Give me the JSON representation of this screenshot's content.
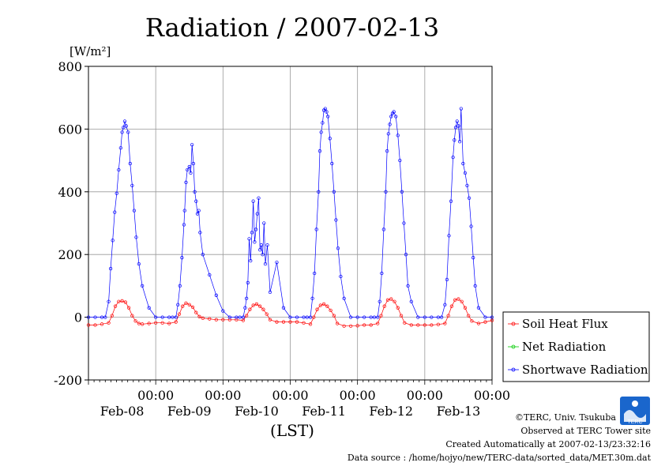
{
  "chart_data": {
    "type": "line",
    "title": "Radiation / 2007-02-13",
    "ylabel": "[W/m²]",
    "xlabel": "(LST)",
    "ylim": [
      -200,
      800
    ],
    "yticks": [
      -200,
      0,
      200,
      400,
      600,
      800
    ],
    "grid": true,
    "legend_position": "right",
    "xlim_days": [
      0,
      6
    ],
    "xticks": [
      {
        "day": 1,
        "time": "00:00",
        "date": "Feb-08"
      },
      {
        "day": 2,
        "time": "00:00",
        "date": "Feb-09"
      },
      {
        "day": 3,
        "time": "00:00",
        "date": "Feb-10"
      },
      {
        "day": 4,
        "time": "00:00",
        "date": "Feb-11"
      },
      {
        "day": 5,
        "time": "00:00",
        "date": "Feb-12"
      },
      {
        "day": 6,
        "time": "00:00",
        "date": "Feb-13"
      }
    ],
    "series": [
      {
        "name": "Soil Heat Flux",
        "color": "#ff0000",
        "x": [
          0.0,
          0.1,
          0.2,
          0.3,
          0.35,
          0.4,
          0.45,
          0.5,
          0.55,
          0.6,
          0.65,
          0.7,
          0.75,
          0.8,
          0.9,
          1.0,
          1.1,
          1.2,
          1.3,
          1.35,
          1.4,
          1.45,
          1.5,
          1.55,
          1.6,
          1.65,
          1.7,
          1.8,
          1.9,
          2.0,
          2.1,
          2.2,
          2.3,
          2.35,
          2.4,
          2.45,
          2.5,
          2.55,
          2.6,
          2.65,
          2.7,
          2.8,
          2.9,
          3.0,
          3.1,
          3.2,
          3.3,
          3.35,
          3.4,
          3.45,
          3.5,
          3.55,
          3.6,
          3.65,
          3.7,
          3.8,
          3.9,
          4.0,
          4.1,
          4.2,
          4.3,
          4.35,
          4.4,
          4.45,
          4.5,
          4.55,
          4.6,
          4.65,
          4.7,
          4.8,
          4.9,
          5.0,
          5.1,
          5.2,
          5.3,
          5.35,
          5.4,
          5.45,
          5.5,
          5.55,
          5.6,
          5.65,
          5.7,
          5.8,
          5.9,
          6.0
        ],
        "values": [
          -25,
          -25,
          -22,
          -18,
          5,
          35,
          50,
          52,
          48,
          30,
          5,
          -12,
          -20,
          -22,
          -20,
          -18,
          -18,
          -20,
          -15,
          10,
          35,
          45,
          40,
          32,
          15,
          2,
          -3,
          -5,
          -8,
          -8,
          -8,
          -8,
          -10,
          5,
          25,
          38,
          42,
          35,
          25,
          10,
          -8,
          -15,
          -15,
          -15,
          -15,
          -18,
          -22,
          0,
          25,
          38,
          42,
          35,
          22,
          5,
          -20,
          -28,
          -28,
          -27,
          -25,
          -25,
          -20,
          5,
          35,
          55,
          58,
          50,
          30,
          5,
          -18,
          -25,
          -25,
          -25,
          -25,
          -23,
          -20,
          5,
          35,
          55,
          58,
          50,
          30,
          5,
          -12,
          -20,
          -15,
          -10
        ]
      },
      {
        "name": "Net Radiation",
        "color": "#00cc00",
        "x": [],
        "values": []
      },
      {
        "name": "Shortwave Radiation",
        "color": "#0000ff",
        "x": [
          0.0,
          0.1,
          0.2,
          0.25,
          0.3,
          0.33,
          0.36,
          0.39,
          0.42,
          0.45,
          0.48,
          0.5,
          0.52,
          0.54,
          0.56,
          0.59,
          0.62,
          0.65,
          0.68,
          0.71,
          0.75,
          0.8,
          0.9,
          1.0,
          1.1,
          1.2,
          1.25,
          1.3,
          1.33,
          1.36,
          1.39,
          1.42,
          1.43,
          1.45,
          1.47,
          1.5,
          1.52,
          1.54,
          1.56,
          1.58,
          1.6,
          1.62,
          1.64,
          1.66,
          1.7,
          1.8,
          1.9,
          2.0,
          2.1,
          2.2,
          2.25,
          2.3,
          2.33,
          2.35,
          2.37,
          2.39,
          2.41,
          2.43,
          2.45,
          2.47,
          2.49,
          2.51,
          2.53,
          2.55,
          2.57,
          2.59,
          2.61,
          2.63,
          2.66,
          2.7,
          2.8,
          2.9,
          3.0,
          3.1,
          3.2,
          3.25,
          3.3,
          3.33,
          3.36,
          3.39,
          3.42,
          3.44,
          3.46,
          3.48,
          3.5,
          3.52,
          3.54,
          3.56,
          3.59,
          3.62,
          3.65,
          3.68,
          3.71,
          3.75,
          3.8,
          3.9,
          4.0,
          4.1,
          4.2,
          4.25,
          4.3,
          4.33,
          4.36,
          4.39,
          4.42,
          4.44,
          4.46,
          4.48,
          4.5,
          4.52,
          4.54,
          4.57,
          4.6,
          4.63,
          4.66,
          4.69,
          4.72,
          4.75,
          4.8,
          4.9,
          5.0,
          5.1,
          5.2,
          5.25,
          5.3,
          5.33,
          5.36,
          5.39,
          5.42,
          5.44,
          5.46,
          5.48,
          5.5,
          5.52,
          5.54,
          5.57,
          5.6,
          5.63,
          5.66,
          5.69,
          5.72,
          5.75,
          5.8,
          5.9,
          6.0
        ],
        "values": [
          0,
          0,
          0,
          0,
          50,
          155,
          245,
          335,
          395,
          470,
          540,
          590,
          605,
          625,
          610,
          590,
          490,
          420,
          340,
          255,
          170,
          100,
          30,
          0,
          0,
          0,
          0,
          0,
          40,
          100,
          190,
          295,
          340,
          430,
          470,
          480,
          460,
          550,
          490,
          400,
          370,
          330,
          340,
          270,
          200,
          135,
          70,
          20,
          0,
          0,
          0,
          0,
          30,
          60,
          110,
          250,
          180,
          270,
          370,
          240,
          280,
          330,
          380,
          215,
          230,
          200,
          300,
          170,
          230,
          80,
          175,
          30,
          0,
          0,
          0,
          0,
          0,
          60,
          140,
          280,
          400,
          530,
          590,
          620,
          660,
          665,
          655,
          640,
          570,
          490,
          400,
          310,
          220,
          130,
          60,
          0,
          0,
          0,
          0,
          0,
          0,
          50,
          140,
          280,
          400,
          530,
          585,
          615,
          640,
          650,
          655,
          640,
          580,
          500,
          400,
          300,
          200,
          100,
          50,
          0,
          0,
          0,
          0,
          0,
          40,
          120,
          260,
          370,
          510,
          565,
          605,
          625,
          610,
          560,
          665,
          490,
          460,
          420,
          380,
          290,
          190,
          100,
          30,
          0,
          0
        ]
      }
    ]
  },
  "footer": {
    "copyright": "©TERC, Univ. Tsukuba",
    "observed": "Observed at TERC Tower site",
    "created": "Created Automatically at 2007-02-13/23:32:16",
    "datasource": "Data source : /home/hojyo/new/TERC-data/sorted_data/MET.30m.dat"
  },
  "logo": {
    "text": "TERC"
  }
}
